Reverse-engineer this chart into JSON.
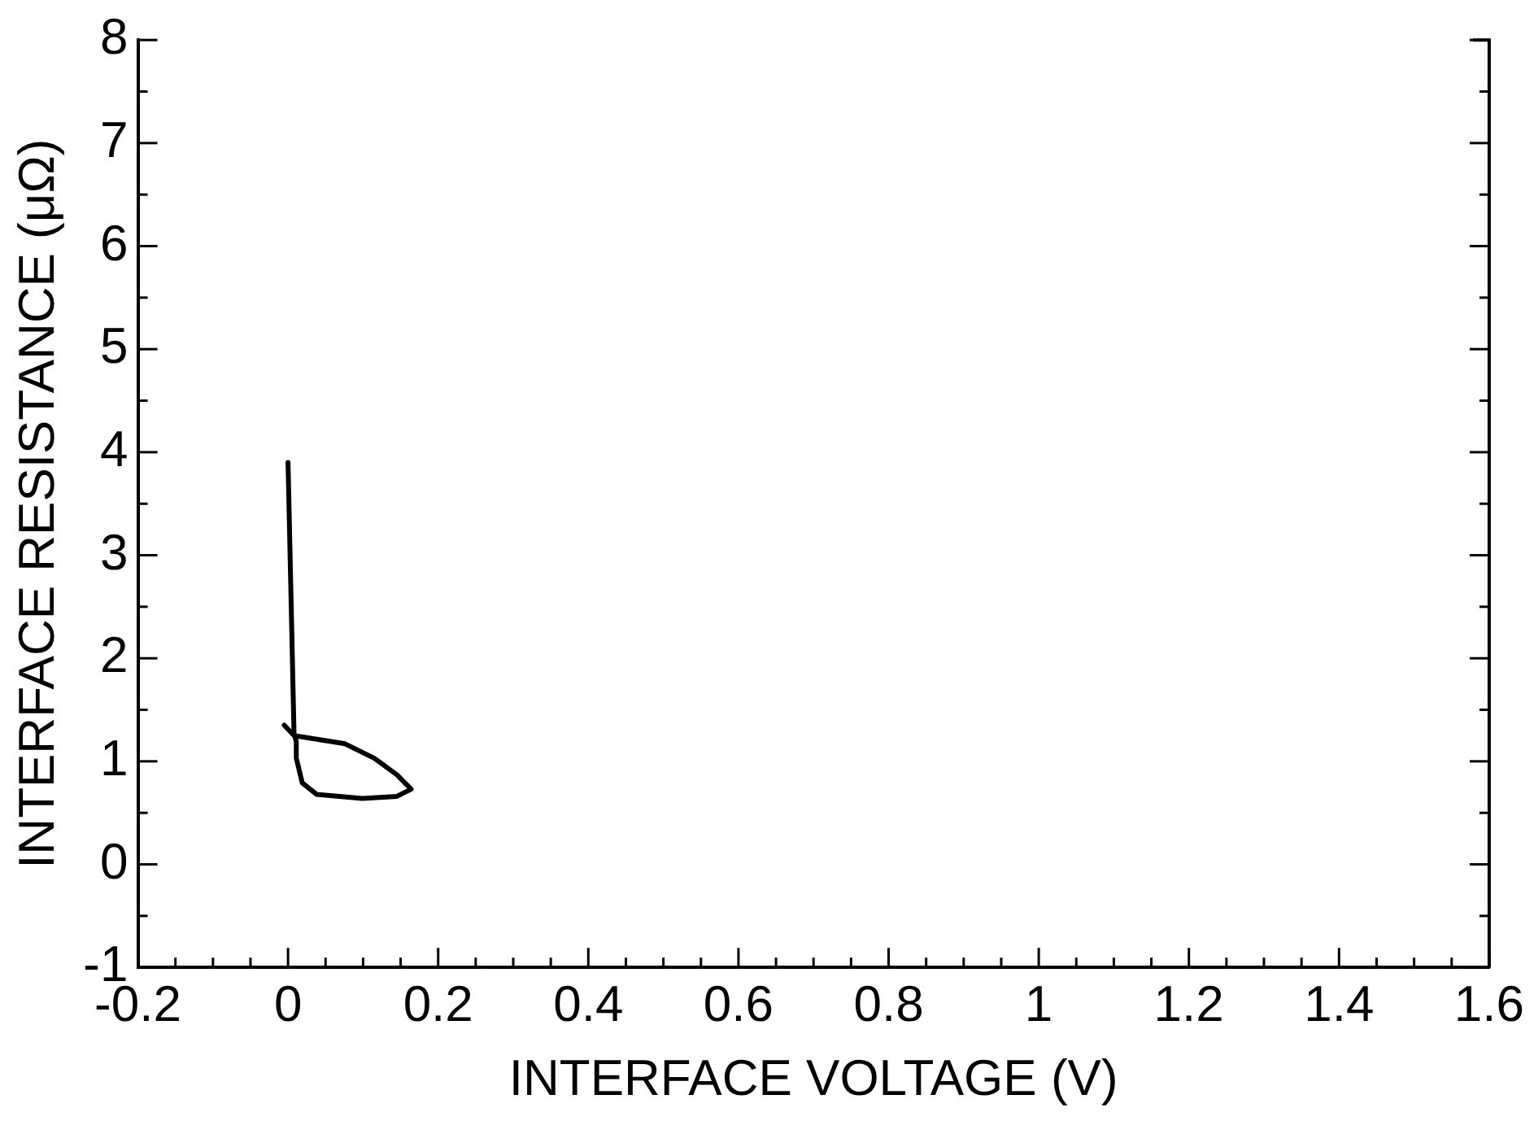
{
  "chart_data": {
    "type": "line",
    "xlabel": "INTERFACE VOLTAGE (V)",
    "ylabel": "INTERFACE RESISTANCE (μΩ)",
    "series": [
      {
        "color": "#000000",
        "x": [
          -0.005,
          0.008,
          0.076,
          0.115,
          0.145,
          0.164,
          0.145,
          0.099,
          0.038,
          0.019,
          0.011,
          0.011,
          0.008,
          0.0
        ],
        "values": [
          1.35,
          1.25,
          1.17,
          1.03,
          0.87,
          0.73,
          0.66,
          0.64,
          0.68,
          0.79,
          1.03,
          1.19,
          1.27,
          3.9
        ]
      }
    ],
    "xlim": [
      -0.2,
      1.6
    ],
    "xticks": [
      -0.2,
      {
        "value": -0.15,
        "label": null
      },
      {
        "value": -0.1,
        "label": null
      },
      {
        "value": -0.05,
        "label": null
      },
      0,
      {
        "value": 0.05,
        "label": null
      },
      {
        "value": 0.1,
        "label": null
      },
      {
        "value": 0.15,
        "label": null
      },
      0.2,
      {
        "value": 0.25,
        "label": null
      },
      {
        "value": 0.3,
        "label": null
      },
      {
        "value": 0.35,
        "label": null
      },
      0.4,
      {
        "value": 0.45,
        "label": null
      },
      {
        "value": 0.5,
        "label": null
      },
      {
        "value": 0.55,
        "label": null
      },
      0.6,
      {
        "value": 0.65,
        "label": null
      },
      {
        "value": 0.7,
        "label": null
      },
      {
        "value": 0.75,
        "label": null
      },
      0.8,
      {
        "value": 0.85,
        "label": null
      },
      {
        "value": 0.9,
        "label": null
      },
      {
        "value": 0.95,
        "label": null
      },
      1,
      {
        "value": 1.05,
        "label": null
      },
      {
        "value": 1.1,
        "label": null
      },
      {
        "value": 1.15,
        "label": null
      },
      1.2,
      {
        "value": 1.25,
        "label": null
      },
      {
        "value": 1.3,
        "label": null
      },
      {
        "value": 1.35,
        "label": null
      },
      1.4,
      {
        "value": 1.45,
        "label": null
      },
      {
        "value": 1.5,
        "label": null
      },
      {
        "value": 1.55,
        "label": null
      },
      1.6
    ],
    "ylim": [
      -1,
      8
    ],
    "yticks": [
      -1,
      {
        "value": -0.5,
        "label": null
      },
      0,
      {
        "value": 0.5,
        "label": null
      },
      1,
      {
        "value": 1.5,
        "label": null
      },
      2,
      {
        "value": 2.5,
        "label": null
      },
      3,
      {
        "value": 3.5,
        "label": null
      },
      4,
      {
        "value": 4.5,
        "label": null
      },
      5,
      {
        "value": 5.5,
        "label": null
      },
      6,
      {
        "value": 6.5,
        "label": null
      },
      7,
      {
        "value": 7.5,
        "label": null
      },
      8
    ],
    "grid": false,
    "legend": false,
    "marker": "none",
    "line_style": "solid"
  }
}
